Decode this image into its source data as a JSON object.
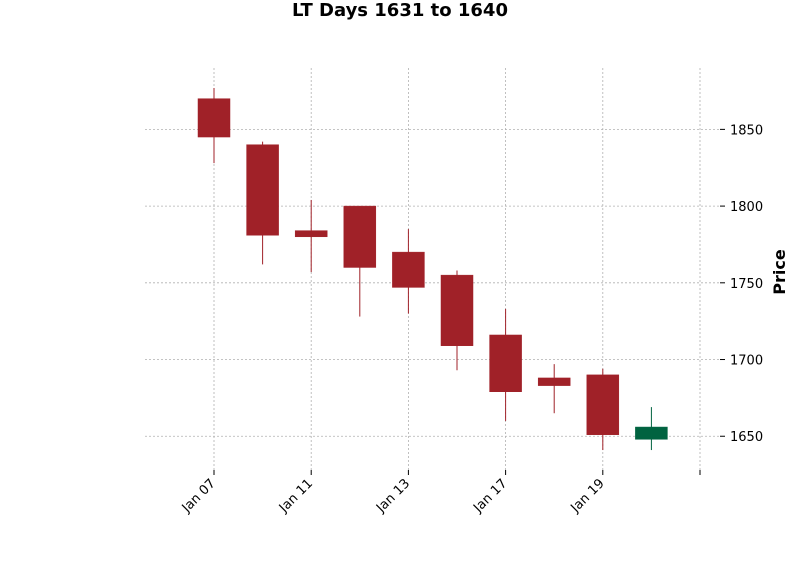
{
  "chart_data": {
    "type": "candlestick",
    "title": "LT Days 1631 to 1640",
    "xlabel": "",
    "ylabel": "Price",
    "ylim": [
      1628,
      1890
    ],
    "grid": true,
    "y_ticks": [
      1650,
      1700,
      1750,
      1800,
      1850
    ],
    "x_ticks": [
      {
        "label": "Jan 07",
        "index": 0
      },
      {
        "label": "Jan 11",
        "index": 2
      },
      {
        "label": "Jan 13",
        "index": 4
      },
      {
        "label": "Jan 17",
        "index": 6
      },
      {
        "label": "Jan 19",
        "index": 8
      },
      {
        "label": "",
        "index": 10
      }
    ],
    "candles": [
      {
        "open": 1870,
        "high": 1877,
        "low": 1828,
        "close": 1845
      },
      {
        "open": 1840,
        "high": 1842,
        "low": 1762,
        "close": 1781
      },
      {
        "open": 1784,
        "high": 1804,
        "low": 1757,
        "close": 1780
      },
      {
        "open": 1800,
        "high": 1800,
        "low": 1728,
        "close": 1760
      },
      {
        "open": 1770,
        "high": 1785,
        "low": 1730,
        "close": 1747
      },
      {
        "open": 1755,
        "high": 1758,
        "low": 1693,
        "close": 1709
      },
      {
        "open": 1716,
        "high": 1733,
        "low": 1660,
        "close": 1679
      },
      {
        "open": 1688,
        "high": 1697,
        "low": 1665,
        "close": 1683
      },
      {
        "open": 1690,
        "high": 1694,
        "low": 1641,
        "close": 1651
      },
      {
        "open": 1648,
        "high": 1669,
        "low": 1641,
        "close": 1656
      }
    ],
    "colors": {
      "down": "#a02128",
      "up": "#006340",
      "grid": "#b0b0b0"
    }
  }
}
